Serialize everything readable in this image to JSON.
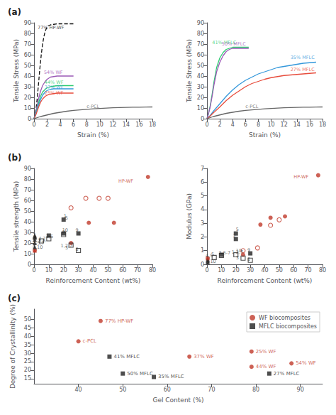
{
  "chart_data": [
    {
      "type": "line",
      "title": "(a)",
      "xlabel": "Strain (%)",
      "ylabel": "Tensile Stress (MPa)",
      "xlim": [
        0,
        18
      ],
      "ylim": [
        0,
        90
      ],
      "xticks": [
        0,
        2,
        4,
        6,
        8,
        10,
        12,
        14,
        16,
        18
      ],
      "yticks": [
        0,
        10,
        20,
        30,
        40,
        50,
        60,
        70,
        80,
        90
      ],
      "grid": false,
      "series": [
        {
          "color": "#111111",
          "line_style": "dashed",
          "x": [
            0,
            0.15,
            0.3,
            0.5,
            0.7,
            0.9,
            1.1,
            1.3,
            1.5,
            1.7,
            1.9,
            2.1,
            2.5,
            3.0,
            3.5,
            4.0,
            4.5,
            5.0,
            5.5,
            6.0
          ],
          "values": [
            0,
            3,
            9,
            20,
            34,
            48,
            60,
            70,
            77,
            82,
            85,
            87,
            88,
            88.5,
            89,
            89,
            89,
            89,
            89,
            89
          ]
        },
        {
          "color": "#9b59b6",
          "line_style": "solid",
          "x": [
            0,
            0.1,
            0.3,
            0.5,
            0.7,
            1.0,
            1.3,
            1.7,
            2.0,
            2.5,
            3.0,
            3.5,
            4.0,
            4.5,
            5.0,
            5.5,
            6.0
          ],
          "values": [
            0,
            2,
            7,
            13,
            19,
            26,
            31,
            35,
            37,
            39,
            39.5,
            40,
            40,
            40,
            40,
            40,
            40
          ]
        },
        {
          "color": "#2ecc71",
          "line_style": "solid",
          "x": [
            0,
            0.1,
            0.3,
            0.5,
            0.7,
            1.0,
            1.3,
            1.7,
            2.0,
            2.5,
            3.0,
            3.5,
            4.0,
            4.5,
            5.0,
            5.5,
            6.0
          ],
          "values": [
            0,
            1.5,
            5.5,
            10,
            15,
            21,
            25,
            27.5,
            29,
            30,
            30.5,
            31,
            31,
            31,
            31,
            31,
            31
          ]
        },
        {
          "color": "#3498db",
          "line_style": "solid",
          "x": [
            0,
            0.1,
            0.3,
            0.5,
            0.7,
            1.0,
            1.3,
            1.7,
            2.0,
            2.5,
            3.0,
            3.5,
            4.0,
            4.5,
            5.0,
            5.5,
            6.0
          ],
          "values": [
            0,
            1.5,
            5,
            9,
            13,
            18,
            22,
            25,
            26.5,
            27.5,
            28,
            28,
            28,
            28,
            28,
            28,
            28
          ]
        },
        {
          "color": "#e74c3c",
          "line_style": "solid",
          "x": [
            0,
            0.1,
            0.3,
            0.5,
            0.7,
            1.0,
            1.3,
            1.7,
            2.0,
            2.5,
            3.0,
            3.5,
            4.0,
            4.5,
            5.0,
            5.5,
            6.0
          ],
          "values": [
            0,
            1,
            4,
            7.5,
            11,
            15.5,
            18.5,
            21,
            22,
            23,
            23.5,
            24,
            24,
            24,
            24,
            24,
            24
          ]
        },
        {
          "color": "#666666",
          "line_style": "solid",
          "x": [
            0,
            0.5,
            1,
            2,
            3,
            4,
            5,
            6,
            7,
            8,
            9,
            10,
            11,
            12,
            13,
            14,
            15,
            16,
            17,
            18
          ],
          "values": [
            0,
            1,
            2,
            3.5,
            5,
            6,
            7,
            7.8,
            8.3,
            8.8,
            9.2,
            9.6,
            9.9,
            10.2,
            10.4,
            10.6,
            10.7,
            10.8,
            10.9,
            11
          ]
        }
      ],
      "annotations": [
        {
          "text": "77% HP-WF",
          "x": 0.55,
          "y": 83,
          "color": "#111111"
        },
        {
          "text": "54% WF",
          "x": 1.5,
          "y": 41,
          "color": "#9b59b6"
        },
        {
          "text": "44% WF",
          "x": 1.6,
          "y": 31.5,
          "color": "#2ecc71"
        },
        {
          "text": "37% WF",
          "x": 1.6,
          "y": 27,
          "color": "#3498db"
        },
        {
          "text": "25% WF",
          "x": 1.6,
          "y": 22,
          "color": "#e74c3c"
        },
        {
          "text": "c-PCL",
          "x": 8.0,
          "y": 9,
          "color": "#666666"
        }
      ]
    },
    {
      "type": "line",
      "xlabel": "Strain (%)",
      "ylabel": "Tensile Stress (MPa)",
      "xlim": [
        0,
        18
      ],
      "ylim": [
        0,
        90
      ],
      "xticks": [
        0,
        2,
        4,
        6,
        8,
        10,
        12,
        14,
        16,
        18
      ],
      "yticks": [
        0,
        10,
        20,
        30,
        40,
        50,
        60,
        70,
        80,
        90
      ],
      "grid": false,
      "series": [
        {
          "color": "#2ecc71",
          "line_style": "solid",
          "x": [
            0,
            0.2,
            0.5,
            0.8,
            1.1,
            1.5,
            2.0,
            2.5,
            3.0,
            3.5,
            4.0,
            4.5,
            5.0,
            5.5,
            6.0,
            6.5
          ],
          "values": [
            0,
            4,
            12,
            23,
            35,
            48,
            57,
            62,
            65,
            66,
            67,
            67,
            67,
            67,
            67,
            67
          ]
        },
        {
          "color": "#9b59b6",
          "line_style": "solid",
          "x": [
            0,
            0.2,
            0.5,
            0.8,
            1.1,
            1.5,
            2.0,
            2.5,
            3.0,
            3.5,
            4.0,
            4.5,
            5.0,
            5.5,
            6.0,
            6.5
          ],
          "values": [
            0,
            4,
            11,
            21,
            32,
            44,
            53,
            59,
            63,
            65,
            66,
            66,
            66,
            66,
            66,
            66
          ]
        },
        {
          "color": "#3498db",
          "line_style": "solid",
          "x": [
            0,
            0.5,
            1,
            2,
            3,
            4,
            5,
            6,
            7,
            8,
            9,
            10,
            11,
            12,
            13,
            14,
            15,
            16,
            17
          ],
          "values": [
            0,
            3,
            7,
            14,
            21,
            27,
            32,
            36,
            39,
            42,
            44,
            46,
            48,
            49,
            50,
            51,
            52,
            52.5,
            53
          ]
        },
        {
          "color": "#e74c3c",
          "line_style": "solid",
          "x": [
            0,
            0.5,
            1,
            2,
            3,
            4,
            5,
            6,
            7,
            8,
            9,
            10,
            11,
            12,
            13,
            14,
            15,
            16,
            17
          ],
          "values": [
            0,
            2.5,
            5.5,
            11,
            17,
            22,
            26,
            30,
            33,
            35,
            37,
            38.5,
            39.5,
            40.5,
            41,
            41.5,
            42,
            42.5,
            43
          ]
        },
        {
          "color": "#666666",
          "line_style": "solid",
          "x": [
            0,
            0.5,
            1,
            2,
            3,
            4,
            5,
            6,
            7,
            8,
            9,
            10,
            11,
            12,
            13,
            14,
            15,
            16,
            17,
            18
          ],
          "values": [
            0,
            1,
            2,
            3.5,
            5,
            6,
            7,
            7.8,
            8.3,
            8.8,
            9.2,
            9.6,
            9.9,
            10.2,
            10.4,
            10.6,
            10.7,
            10.8,
            10.9,
            11
          ]
        }
      ],
      "annotations": [
        {
          "text": "41% MFLC",
          "x": 0.8,
          "y": 69,
          "color": "#2ecc71"
        },
        {
          "text": "50% MFLC",
          "x": 2.3,
          "y": 68,
          "color": "#9b59b6"
        },
        {
          "text": "35% MFLC",
          "x": 13.0,
          "y": 55,
          "color": "#3498db"
        },
        {
          "text": "27% MFLC",
          "x": 13.0,
          "y": 44,
          "color": "#e74c3c"
        },
        {
          "text": "c-PCL",
          "x": 6.0,
          "y": 9,
          "color": "#666666"
        }
      ]
    },
    {
      "type": "scatter",
      "title": "(b)",
      "xlabel": "Reinforcement Content (wt%)",
      "ylabel": "Tensile strength (MPa)",
      "xlim": [
        0,
        80
      ],
      "ylim": [
        0,
        90
      ],
      "xticks": [
        0,
        10,
        20,
        30,
        40,
        50,
        60,
        70,
        80
      ],
      "yticks": [
        0,
        10,
        20,
        30,
        40,
        50,
        60,
        70,
        80,
        90
      ],
      "grid": false,
      "series": [
        {
          "color": "#c0392b",
          "marker": "circle",
          "x": [
            0.5,
            25,
            37,
            54,
            77
          ],
          "values": [
            13,
            20,
            39,
            39,
            82
          ]
        },
        {
          "color": "#c0392b",
          "marker": "open-circle",
          "x": [
            25,
            35,
            44,
            50
          ],
          "values": [
            53,
            62,
            62,
            62
          ]
        },
        {
          "color": "#222222",
          "marker": "square",
          "x": [
            10,
            20,
            20,
            30
          ],
          "values": [
            27,
            29,
            42,
            29
          ]
        },
        {
          "color": "#222222",
          "marker": "open-square",
          "x": [
            5,
            10,
            20,
            25,
            30
          ],
          "values": [
            22,
            24,
            28,
            18,
            13
          ]
        },
        {
          "color": "#222222",
          "marker": "triangle",
          "x": [
            0.5,
            0.5,
            0.5,
            0.5,
            0.5,
            0.5
          ],
          "values": [
            16,
            20,
            23,
            25,
            26,
            27
          ]
        },
        {
          "color": "#c0392b",
          "marker": "triangle",
          "x": [
            0.5
          ],
          "values": [
            13
          ]
        }
      ],
      "annotations": [
        {
          "text": "HP-WF",
          "x": 57,
          "y": 76,
          "color": "#c0392b"
        },
        {
          "text": "8,10",
          "x": -1,
          "y": 14,
          "color": "#444444"
        },
        {
          "text": "1-5,7",
          "x": -1,
          "y": 18,
          "color": "#444444"
        },
        {
          "text": "6",
          "x": -1,
          "y": 22,
          "color": "#444444"
        },
        {
          "text": "7",
          "x": -1,
          "y": 25,
          "color": "#444444"
        },
        {
          "text": "4,7",
          "x": 3,
          "y": 22,
          "color": "#444444"
        },
        {
          "text": "3,5",
          "x": 3,
          "y": 20,
          "color": "#444444"
        },
        {
          "text": "3,5",
          "x": 8,
          "y": 24,
          "color": "#444444"
        },
        {
          "text": "1,2,7",
          "x": 18,
          "y": 15,
          "color": "#444444"
        },
        {
          "text": "2",
          "x": 19,
          "y": 28,
          "color": "#444444"
        },
        {
          "text": "10",
          "x": 19,
          "y": 30,
          "color": "#444444"
        },
        {
          "text": "1",
          "x": 20,
          "y": 43,
          "color": "#444444"
        },
        {
          "text": "5",
          "x": 21,
          "y": 41,
          "color": "#444444"
        },
        {
          "text": "3",
          "x": 21,
          "y": 13,
          "color": "#444444"
        },
        {
          "text": "9",
          "x": 28,
          "y": 30,
          "color": "#444444"
        },
        {
          "text": "8",
          "x": 28,
          "y": 12,
          "color": "#444444"
        }
      ]
    },
    {
      "type": "scatter",
      "xlabel": "Reinforcement Content (wt%)",
      "ylabel": "Modulus (GPa)",
      "xlim": [
        0,
        80
      ],
      "ylim": [
        0,
        7
      ],
      "xticks": [
        0,
        10,
        20,
        30,
        40,
        50,
        60,
        70,
        80
      ],
      "yticks": [
        0,
        1,
        2,
        3,
        4,
        5,
        6,
        7
      ],
      "grid": false,
      "series": [
        {
          "color": "#c0392b",
          "marker": "circle",
          "x": [
            0.5,
            25,
            37,
            44,
            54,
            77
          ],
          "values": [
            0.45,
            0.7,
            2.9,
            3.4,
            3.5,
            6.5
          ]
        },
        {
          "color": "#c0392b",
          "marker": "open-circle",
          "x": [
            25,
            35,
            44,
            50
          ],
          "values": [
            1.0,
            1.2,
            2.85,
            3.25
          ]
        },
        {
          "color": "#222222",
          "marker": "square",
          "x": [
            10,
            20,
            20,
            30
          ],
          "values": [
            0.7,
            1.85,
            2.25,
            0.8
          ]
        },
        {
          "color": "#222222",
          "marker": "open-square",
          "x": [
            5,
            10,
            20,
            25,
            30
          ],
          "values": [
            0.5,
            0.65,
            0.7,
            0.45,
            0.3
          ]
        },
        {
          "color": "#222222",
          "marker": "triangle",
          "x": [
            0.5,
            0.5,
            0.5
          ],
          "values": [
            0.15,
            0.25,
            0.35
          ]
        },
        {
          "color": "#c0392b",
          "marker": "triangle",
          "x": [
            0.5
          ],
          "values": [
            0.45
          ]
        }
      ],
      "annotations": [
        {
          "text": "HP-WF",
          "x": 60,
          "y": 6.2,
          "color": "#c0392b"
        },
        {
          "text": "1-10",
          "x": -1,
          "y": 0.03,
          "color": "#444444"
        },
        {
          "text": "4,5",
          "x": -1,
          "y": 0.45,
          "color": "#444444"
        },
        {
          "text": "5",
          "x": 3,
          "y": 0.55,
          "color": "#444444"
        },
        {
          "text": "3,6-7",
          "x": 8,
          "y": 0.65,
          "color": "#444444"
        },
        {
          "text": "1,2,7",
          "x": 17,
          "y": 0.7,
          "color": "#444444"
        },
        {
          "text": "2",
          "x": 18,
          "y": 1.9,
          "color": "#444444"
        },
        {
          "text": "5",
          "x": 20,
          "y": 2.35,
          "color": "#444444"
        },
        {
          "text": "10",
          "x": 20,
          "y": 0.78,
          "color": "#444444"
        },
        {
          "text": "3",
          "x": 20,
          "y": 0.3,
          "color": "#444444"
        },
        {
          "text": "9",
          "x": 28,
          "y": 0.85,
          "color": "#444444"
        },
        {
          "text": "8",
          "x": 28,
          "y": 0.18,
          "color": "#444444"
        }
      ]
    },
    {
      "type": "scatter",
      "title": "(c)",
      "xlabel": "Gel Content (%)",
      "ylabel": "Degree of Crystallinity (%)",
      "xlim": [
        30,
        95
      ],
      "ylim": [
        12,
        56
      ],
      "xticks": [
        40,
        50,
        60,
        70,
        80,
        90
      ],
      "yticks": [
        15,
        20,
        25,
        30,
        35,
        40,
        45,
        50
      ],
      "grid": false,
      "legend": "upper right",
      "series": [
        {
          "name": "WF biocomposites",
          "color": "#c0392b",
          "marker": "circle",
          "x": [
            45,
            40,
            79,
            65,
            79,
            88
          ],
          "values": [
            49,
            37,
            31,
            28,
            22,
            24
          ],
          "labels": [
            "77% HP-WF",
            "c-PCL",
            "25% WF",
            "37% WF",
            "44% WF",
            "54% WF"
          ]
        },
        {
          "name": "MFLC biocomposites",
          "color": "#222222",
          "marker": "square",
          "x": [
            47,
            50,
            57,
            83
          ],
          "values": [
            28,
            18,
            16,
            18
          ],
          "labels": [
            "41% MFLC",
            "50% MFLC",
            "35% MFLC",
            "27% MFLC"
          ]
        }
      ]
    }
  ]
}
